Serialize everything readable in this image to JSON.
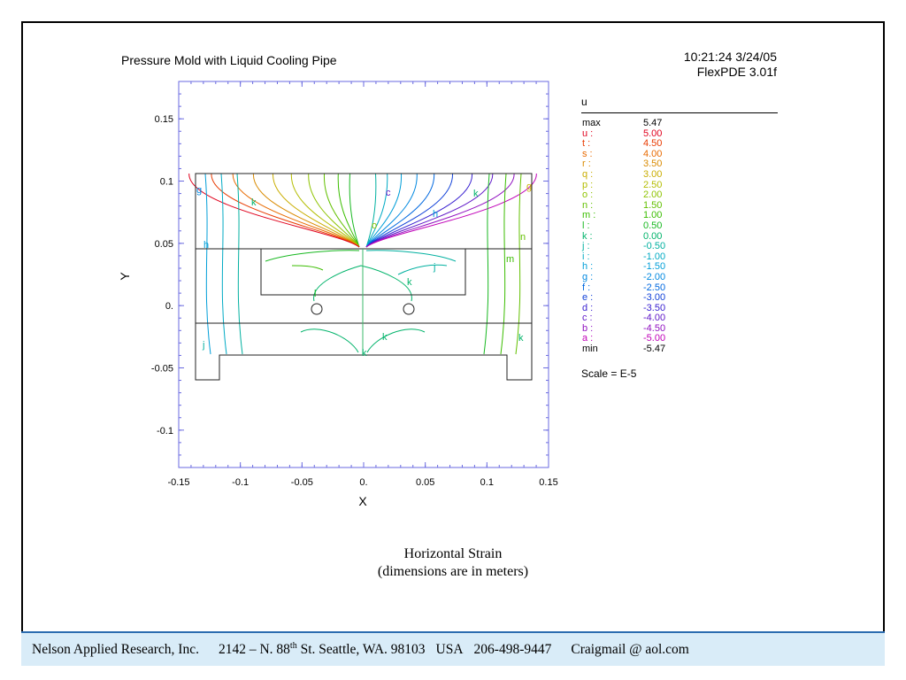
{
  "chart_data": {
    "type": "contour",
    "title": "Pressure Mold with Liquid Cooling Pipe",
    "xlabel": "X",
    "ylabel": "Y",
    "xlim": [
      -0.15,
      0.15
    ],
    "ylim": [
      -0.13,
      0.18
    ],
    "x_ticks": [
      "-0.15",
      "-0.1",
      "-0.05",
      "0.",
      "0.05",
      "0.1",
      "0.15"
    ],
    "x_tick_values": [
      -0.15,
      -0.1,
      -0.05,
      0,
      0.05,
      0.1,
      0.15
    ],
    "y_ticks": [
      "0.15",
      "0.1",
      "0.05",
      "0.",
      "-0.05",
      "-0.1"
    ],
    "y_tick_values": [
      0.15,
      0.1,
      0.05,
      0,
      -0.05,
      -0.1
    ],
    "variable": "u",
    "max": "5.47",
    "min": "-5.47",
    "scale": "Scale = E-5",
    "levels": [
      {
        "key": "u :",
        "value": "5.00",
        "color": "#e0001c"
      },
      {
        "key": "t :",
        "value": "4.50",
        "color": "#e83a00"
      },
      {
        "key": "s :",
        "value": "4.00",
        "color": "#e86a00"
      },
      {
        "key": "r :",
        "value": "3.50",
        "color": "#d98a00"
      },
      {
        "key": "q :",
        "value": "3.00",
        "color": "#c9ad00"
      },
      {
        "key": "p :",
        "value": "2.50",
        "color": "#b3bd00"
      },
      {
        "key": "o :",
        "value": "2.00",
        "color": "#8ec300"
      },
      {
        "key": "n :",
        "value": "1.50",
        "color": "#62c000"
      },
      {
        "key": "m :",
        "value": "1.00",
        "color": "#3bbd00"
      },
      {
        "key": "l :",
        "value": "0.50",
        "color": "#18b820"
      },
      {
        "key": "k :",
        "value": "0.00",
        "color": "#00b36a"
      },
      {
        "key": "j :",
        "value": "-0.50",
        "color": "#00b0a0"
      },
      {
        "key": "i :",
        "value": "-1.00",
        "color": "#00aac4"
      },
      {
        "key": "h :",
        "value": "-1.50",
        "color": "#009ed8"
      },
      {
        "key": "g :",
        "value": "-2.00",
        "color": "#0088e0"
      },
      {
        "key": "f :",
        "value": "-2.50",
        "color": "#0068e0"
      },
      {
        "key": "e :",
        "value": "-3.00",
        "color": "#1040d8"
      },
      {
        "key": "d :",
        "value": "-3.50",
        "color": "#3820d0"
      },
      {
        "key": "c :",
        "value": "-4.00",
        "color": "#6018c8"
      },
      {
        "key": "b :",
        "value": "-4.50",
        "color": "#9010c0"
      },
      {
        "key": "a :",
        "value": "-5.00",
        "color": "#c000b8"
      }
    ],
    "contour_labels": [
      "g",
      "k",
      "c",
      "h",
      "k",
      "g",
      "h",
      "n",
      "m",
      "o",
      "j",
      "k",
      "k",
      "j",
      "k",
      "l",
      "k"
    ]
  },
  "header": {
    "timestamp": "10:21:24 3/24/05",
    "software": "FlexPDE 3.01f"
  },
  "legend": {
    "max_label": "max",
    "min_label": "min"
  },
  "caption": {
    "line1": "Horizontal Strain",
    "line2": "(dimensions are in meters)"
  },
  "footer": {
    "company": "Nelson Applied Research, Inc.",
    "address_pre": "2142 –  N. 88",
    "address_sup": "th",
    "address_post": " St. Seattle, WA. 98103",
    "country": "USA",
    "phone": "206-498-9447",
    "email": "Craigmail @ aol.com"
  }
}
